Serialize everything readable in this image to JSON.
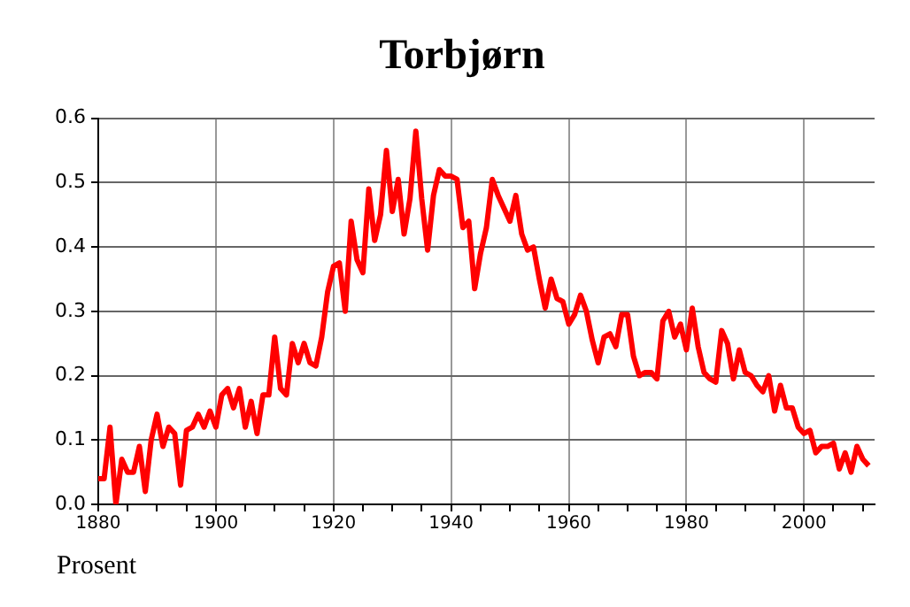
{
  "chart_data": {
    "type": "line",
    "title": "Torbjørn",
    "ylabel": "Prosent",
    "x": [
      1880,
      1881,
      1882,
      1883,
      1884,
      1885,
      1886,
      1887,
      1888,
      1889,
      1890,
      1891,
      1892,
      1893,
      1894,
      1895,
      1896,
      1897,
      1898,
      1899,
      1900,
      1901,
      1902,
      1903,
      1904,
      1905,
      1906,
      1907,
      1908,
      1909,
      1910,
      1911,
      1912,
      1913,
      1914,
      1915,
      1916,
      1917,
      1918,
      1919,
      1920,
      1921,
      1922,
      1923,
      1924,
      1925,
      1926,
      1927,
      1928,
      1929,
      1930,
      1931,
      1932,
      1933,
      1934,
      1935,
      1936,
      1937,
      1938,
      1939,
      1940,
      1941,
      1942,
      1943,
      1944,
      1945,
      1946,
      1947,
      1948,
      1949,
      1950,
      1951,
      1952,
      1953,
      1954,
      1955,
      1956,
      1957,
      1958,
      1959,
      1960,
      1961,
      1962,
      1963,
      1964,
      1965,
      1966,
      1967,
      1968,
      1969,
      1970,
      1971,
      1972,
      1973,
      1974,
      1975,
      1976,
      1977,
      1978,
      1979,
      1980,
      1981,
      1982,
      1983,
      1984,
      1985,
      1986,
      1987,
      1988,
      1989,
      1990,
      1991,
      1992,
      1993,
      1994,
      1995,
      1996,
      1997,
      1998,
      1999,
      2000,
      2001,
      2002,
      2003,
      2004,
      2005,
      2006,
      2007,
      2008,
      2009,
      2010,
      2011
    ],
    "series": [
      {
        "color": "#ff0000",
        "values": [
          0.04,
          0.04,
          0.12,
          0.0,
          0.07,
          0.05,
          0.05,
          0.09,
          0.02,
          0.1,
          0.14,
          0.09,
          0.12,
          0.11,
          0.03,
          0.115,
          0.12,
          0.14,
          0.12,
          0.145,
          0.12,
          0.17,
          0.18,
          0.15,
          0.18,
          0.12,
          0.16,
          0.11,
          0.17,
          0.17,
          0.26,
          0.18,
          0.17,
          0.25,
          0.22,
          0.25,
          0.22,
          0.215,
          0.26,
          0.33,
          0.37,
          0.375,
          0.3,
          0.44,
          0.38,
          0.36,
          0.49,
          0.41,
          0.45,
          0.55,
          0.455,
          0.505,
          0.42,
          0.475,
          0.58,
          0.475,
          0.395,
          0.48,
          0.52,
          0.51,
          0.51,
          0.505,
          0.43,
          0.44,
          0.335,
          0.39,
          0.43,
          0.505,
          0.48,
          0.46,
          0.44,
          0.48,
          0.42,
          0.395,
          0.4,
          0.35,
          0.305,
          0.35,
          0.32,
          0.315,
          0.28,
          0.295,
          0.325,
          0.3,
          0.255,
          0.22,
          0.26,
          0.265,
          0.245,
          0.295,
          0.295,
          0.23,
          0.2,
          0.205,
          0.205,
          0.195,
          0.285,
          0.3,
          0.26,
          0.28,
          0.24,
          0.305,
          0.245,
          0.205,
          0.195,
          0.19,
          0.27,
          0.25,
          0.195,
          0.24,
          0.205,
          0.2,
          0.185,
          0.175,
          0.2,
          0.145,
          0.185,
          0.15,
          0.15,
          0.12,
          0.11,
          0.115,
          0.08,
          0.09,
          0.09,
          0.095,
          0.055,
          0.08,
          0.05,
          0.09,
          0.07,
          0.06
        ]
      }
    ],
    "xlim": [
      1880,
      2012
    ],
    "xticks": [
      1880,
      {
        "value": 1885,
        "label": null
      },
      {
        "value": 1890,
        "label": null
      },
      {
        "value": 1895,
        "label": null
      },
      1900,
      {
        "value": 1905,
        "label": null
      },
      {
        "value": 1910,
        "label": null
      },
      {
        "value": 1915,
        "label": null
      },
      1920,
      {
        "value": 1925,
        "label": null
      },
      {
        "value": 1930,
        "label": null
      },
      {
        "value": 1935,
        "label": null
      },
      1940,
      {
        "value": 1945,
        "label": null
      },
      {
        "value": 1950,
        "label": null
      },
      {
        "value": 1955,
        "label": null
      },
      1960,
      {
        "value": 1965,
        "label": null
      },
      {
        "value": 1970,
        "label": null
      },
      {
        "value": 1975,
        "label": null
      },
      1980,
      {
        "value": 1985,
        "label": null
      },
      {
        "value": 1990,
        "label": null
      },
      {
        "value": 1995,
        "label": null
      },
      2000,
      {
        "value": 2005,
        "label": null
      },
      {
        "value": 2010,
        "label": null
      }
    ],
    "ylim": [
      0,
      0.6
    ],
    "yticks": [
      {
        "value": 0,
        "label": "0.0"
      },
      0.1,
      0.2,
      0.3,
      0.4,
      0.5,
      0.6
    ],
    "grid": true,
    "legend": false,
    "marker": "none",
    "line_style": "solid"
  }
}
